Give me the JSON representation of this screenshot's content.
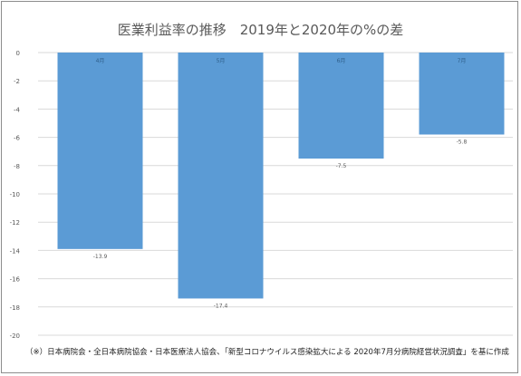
{
  "title": "医業利益率の推移　2019年と2020年の%の差",
  "footnote": "（※）日本病院会・全日本病院協会・日本医療法人協会、「新型コロナウイルス感染拡大による 2020年7月分病院経営状況調査」を基に作成",
  "colors": {
    "bar": "#5b9bd5",
    "grid": "#d9d9d9",
    "axis_text": "#595959"
  },
  "chart_data": {
    "type": "bar",
    "title": "医業利益率の推移　2019年と2020年の%の差",
    "categories": [
      "4月",
      "5月",
      "6月",
      "7月"
    ],
    "values": [
      -13.9,
      -17.4,
      -7.5,
      -5.8
    ],
    "value_labels": [
      "-13.9",
      "-17.4",
      "-7.5",
      "-5.8"
    ],
    "ylim": [
      -20,
      0
    ],
    "yticks": [
      0,
      -2,
      -4,
      -6,
      -8,
      -10,
      -12,
      -14,
      -16,
      -18,
      -20
    ],
    "grid": true,
    "category_labels_position": "inside-top"
  }
}
